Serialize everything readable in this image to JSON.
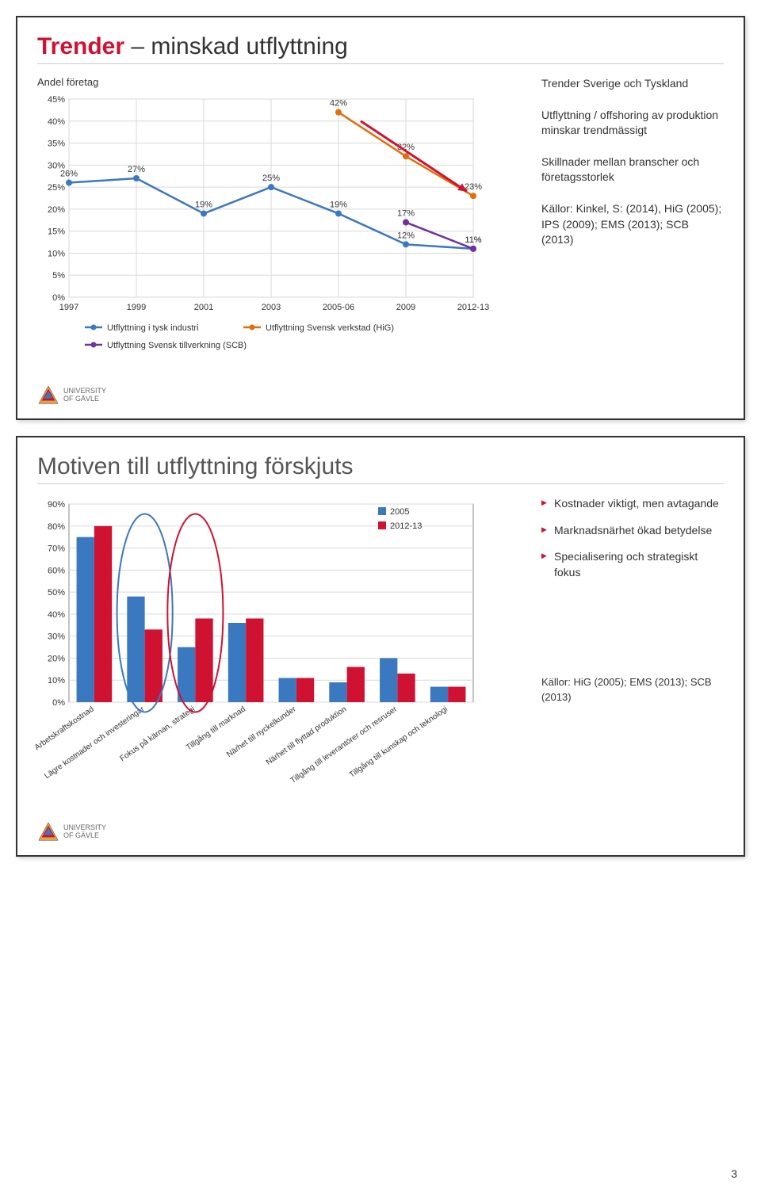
{
  "page_number": "3",
  "slide1": {
    "title_accent": "Trender",
    "title_rest": " – minskad utflyttning",
    "chart_subtitle": "Andel företag",
    "side": {
      "p1": "Trender Sverige och Tyskland",
      "p2": "Utflyttning / offshoring av produktion minskar trendmässigt",
      "p3": "Skillnader mellan branscher och företagsstorlek",
      "p4": "Källor: Kinkel, S: (2014), HiG (2005); IPS (2009); EMS (2013); SCB (2013)"
    },
    "chart": {
      "type": "line",
      "categories": [
        "1997",
        "1999",
        "2001",
        "2003",
        "2005-06",
        "2009",
        "2012-13"
      ],
      "y_ticks": [
        0,
        5,
        10,
        15,
        20,
        25,
        30,
        35,
        40,
        45
      ],
      "ylim": [
        0,
        45
      ],
      "series": [
        {
          "name": "Utflyttning i tysk industri",
          "color": "#3a78c0",
          "values": [
            26,
            27,
            19,
            25,
            19,
            12,
            11
          ],
          "labels": [
            "26%",
            "27%",
            "19%",
            "25%",
            "19%",
            "12%",
            "11%"
          ]
        },
        {
          "name": "Utflyttning Svensk verkstad (HiG)",
          "color": "#e46c0a",
          "values": [
            null,
            null,
            null,
            null,
            42,
            32,
            23
          ],
          "labels": [
            null,
            null,
            null,
            null,
            "42%",
            "32%",
            "23%"
          ]
        },
        {
          "name": "Utflyttning Svensk tillverkning (SCB)",
          "color": "#7030a0",
          "values": [
            null,
            null,
            null,
            null,
            null,
            17,
            11
          ],
          "labels": [
            null,
            null,
            null,
            null,
            null,
            "17%",
            "11%"
          ]
        }
      ],
      "arrow_color": "#d01232",
      "grid_color": "#d9d9d9",
      "background_color": "#ffffff",
      "font_size": 11
    },
    "logo_text_l1": "UNIVERSITY",
    "logo_text_l2": "OF GÄVLE"
  },
  "slide2": {
    "title": "Motiven till utflyttning förskjuts",
    "side_bullets": [
      "Kostnader viktigt, men avtagande",
      "Marknadsnärhet ökad betydelse",
      "Specialisering och strategiskt fokus"
    ],
    "sources": "Källor: HiG (2005); EMS (2013); SCB (2013)",
    "chart": {
      "type": "bar",
      "categories": [
        "Arbetskraftskostnad",
        "Lägre kostnader och investeringar",
        "Fokus på kärnan, strategi",
        "Tillgång till marknad",
        "Närhet till nyckelkunder",
        "Närhet till flyttad produktion",
        "Tillgång till leverantörer och resruser",
        "Tillgång till kunskap och teknologi"
      ],
      "y_ticks": [
        0,
        10,
        20,
        30,
        40,
        50,
        60,
        70,
        80,
        90
      ],
      "ylim": [
        0,
        90
      ],
      "legend": [
        {
          "name": "2005",
          "color": "#3a78c0"
        },
        {
          "name": "2012-13",
          "color": "#d01232"
        }
      ],
      "series_2005": [
        75,
        48,
        25,
        36,
        11,
        9,
        20,
        7
      ],
      "series_2012": [
        80,
        33,
        38,
        38,
        11,
        16,
        13,
        7
      ],
      "circles": [
        {
          "x_index": 1,
          "color": "#3a78c0"
        },
        {
          "x_index": 2,
          "color": "#d01232"
        }
      ],
      "grid_color": "#d9d9d9",
      "background_color": "#ffffff",
      "font_size": 11,
      "bar_width": 0.35
    },
    "logo_text_l1": "UNIVERSITY",
    "logo_text_l2": "OF GÄVLE"
  }
}
